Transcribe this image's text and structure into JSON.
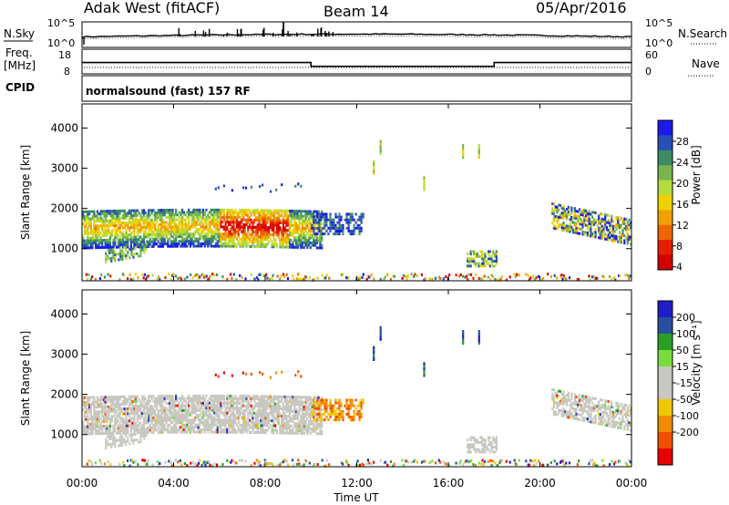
{
  "header": {
    "station": "Adak West (fitACF)",
    "beam": "Beam 14",
    "date": "05/Apr/2016"
  },
  "labels": {
    "nsky": "N.Sky",
    "freq_line1": "Freq.",
    "freq_line2": "[MHz]",
    "cpid": "CPID",
    "nsearch": "N.Search",
    "nave": "Nave",
    "cpid_value": "normalsound (fast) 157 RF"
  },
  "chart_data": [
    {
      "type": "line",
      "name": "noise",
      "left_ticks": [
        "10^5",
        "10^0"
      ],
      "right_ticks": [
        "10^5",
        "10^0"
      ]
    },
    {
      "type": "line",
      "name": "frequency",
      "left_ticks": [
        "18",
        "8"
      ],
      "right_ticks": [
        "60",
        "0"
      ],
      "steps": [
        {
          "from": "00:00",
          "to": "10:00",
          "freq_mhz": 12.5
        },
        {
          "from": "10:00",
          "to": "18:00",
          "freq_mhz": 10.5
        },
        {
          "from": "18:00",
          "to": "24:00",
          "freq_mhz": 12.5
        }
      ]
    },
    {
      "type": "heatmap",
      "name": "power",
      "ylabel": "Slant Range [km]",
      "yticks": [
        "4000",
        "3000",
        "2000",
        "1000"
      ],
      "ylim": [
        200,
        4600
      ],
      "colorbar_label": "Power [dB]",
      "colorbar_ticks": [
        "28",
        "24",
        "20",
        "16",
        "12",
        "8",
        "4"
      ],
      "colorbar_colors": [
        "#1a1aee",
        "#2850b4",
        "#3c8c64",
        "#78b450",
        "#b4dc3c",
        "#f0d200",
        "#f0a000",
        "#f06400",
        "#e61e00",
        "#d20000"
      ]
    },
    {
      "type": "heatmap",
      "name": "velocity",
      "ylabel": "Slant Range [km]",
      "yticks": [
        "4000",
        "3000",
        "2000",
        "1000"
      ],
      "ylim": [
        200,
        4600
      ],
      "colorbar_label": "Velocity [m s⁻¹]",
      "colorbar_ticks": [
        "200",
        "100",
        "50",
        "15",
        "-15",
        "-50",
        "-100",
        "-200"
      ],
      "colorbar_colors": [
        "#1e1ec8",
        "#2850a0",
        "#28a028",
        "#78dc3c",
        "#c8c8c0",
        "#c8c8c0",
        "#f0c800",
        "#f08c00",
        "#f05000",
        "#e60000"
      ]
    }
  ],
  "xaxis": {
    "label": "Time UT",
    "ticks": [
      "00:00",
      "04:00",
      "08:00",
      "12:00",
      "16:00",
      "20:00",
      "00:00"
    ]
  }
}
